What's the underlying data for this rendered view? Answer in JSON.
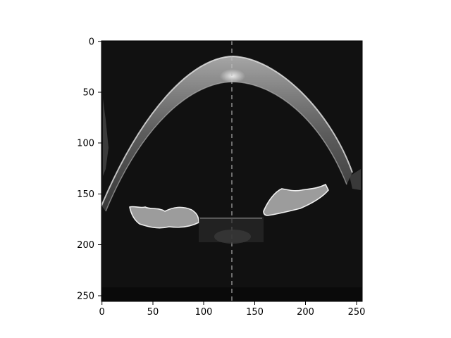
{
  "figure": {
    "image_description_icon": "oct-scan-image",
    "x_axis": {
      "range": [
        0,
        255
      ],
      "ticks": [
        0,
        50,
        100,
        150,
        200,
        250
      ]
    },
    "y_axis": {
      "range": [
        0,
        255
      ],
      "ticks": [
        0,
        50,
        100,
        150,
        200,
        250
      ],
      "inverted": true
    },
    "colors": {
      "background": "#ffffff",
      "image_bg": "#101010",
      "tissue": "#cfcfcf",
      "axis": "#000000"
    }
  }
}
